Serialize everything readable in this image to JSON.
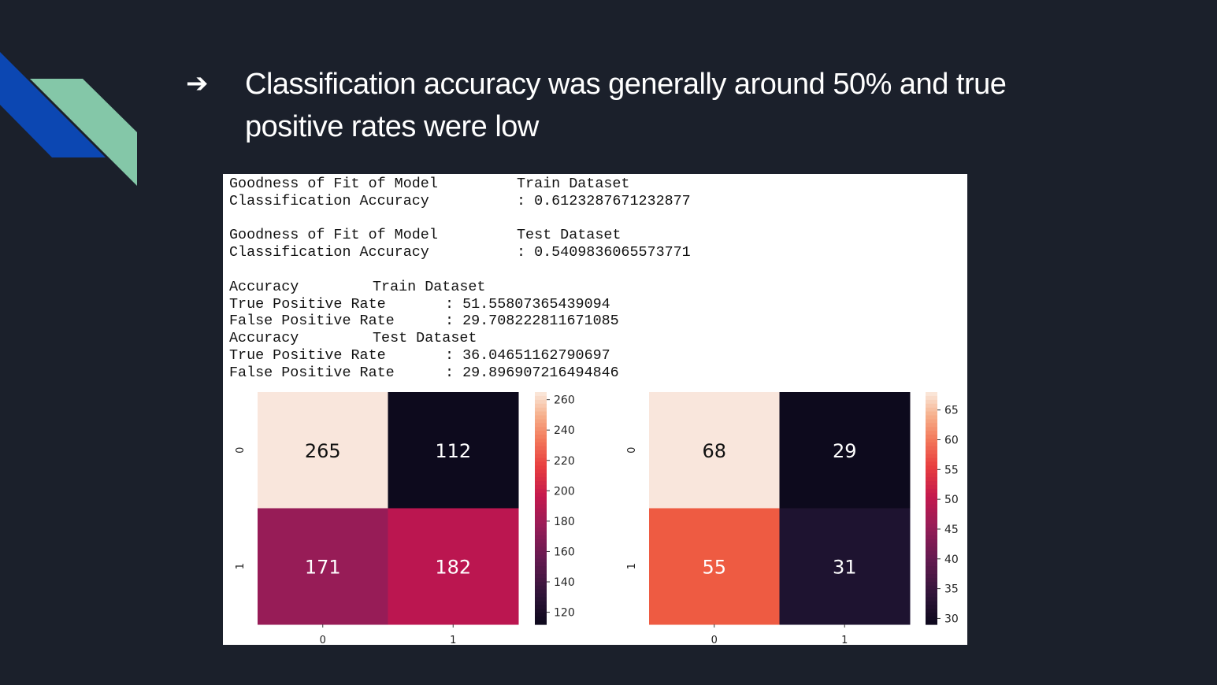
{
  "slide": {
    "bullet": "➔",
    "headline": "Classification accuracy was generally around 50% and true positive rates were low"
  },
  "output": {
    "lines": [
      {
        "label": "Goodness of Fit of Model",
        "value": "Train Dataset",
        "col": 2
      },
      {
        "label": "Classification Accuracy",
        "value": ": 0.6123287671232877",
        "col": 2
      },
      {
        "label": "",
        "value": "",
        "col": 2
      },
      {
        "label": "Goodness of Fit of Model",
        "value": "Test Dataset",
        "col": 2
      },
      {
        "label": "Classification Accuracy",
        "value": ": 0.5409836065573771",
        "col": 2
      },
      {
        "label": "",
        "value": "",
        "col": 2
      },
      {
        "label": "Accuracy",
        "value": "Train Dataset",
        "col": 1
      },
      {
        "label": "True Positive Rate",
        "value": ": 51.55807365439094",
        "col": 3
      },
      {
        "label": "False Positive Rate",
        "value": ": 29.708222811671085",
        "col": 3
      },
      {
        "label": "Accuracy",
        "value": "Test Dataset",
        "col": 1
      },
      {
        "label": "True Positive Rate",
        "value": ": 36.04651162790697",
        "col": 3
      },
      {
        "label": "False Positive Rate",
        "value": ": 29.896907216494846",
        "col": 3
      }
    ]
  },
  "chart_data": [
    {
      "type": "heatmap",
      "title": "",
      "x_categories": [
        "0",
        "1"
      ],
      "y_categories": [
        "0",
        "1"
      ],
      "values": [
        [
          265,
          112
        ],
        [
          171,
          182
        ]
      ],
      "colorbar": {
        "range": [
          112,
          265
        ],
        "ticks": [
          120,
          140,
          160,
          180,
          200,
          220,
          240,
          260
        ]
      },
      "colormap": "rocket",
      "annot_colors": [
        "#111111",
        "#ffffff",
        "#ffffff",
        "#ffffff"
      ]
    },
    {
      "type": "heatmap",
      "title": "",
      "x_categories": [
        "0",
        "1"
      ],
      "y_categories": [
        "0",
        "1"
      ],
      "values": [
        [
          68,
          29
        ],
        [
          55,
          31
        ]
      ],
      "colorbar": {
        "range": [
          29,
          68
        ],
        "ticks": [
          30,
          35,
          40,
          45,
          50,
          55,
          60,
          65
        ]
      },
      "colormap": "rocket",
      "annot_colors": [
        "#111111",
        "#ffffff",
        "#ffffff",
        "#ffffff"
      ]
    }
  ],
  "colors": {
    "background": "#1b202b",
    "deco_blue": "#0c47b2",
    "deco_green": "#84c7a8",
    "cells": {
      "train": [
        "#f9e6dc",
        "#0d0a1d",
        "#971c57",
        "#bb1650"
      ],
      "test": [
        "#f9e6dc",
        "#0d0a1d",
        "#ee5b42",
        "#1e1330"
      ]
    }
  }
}
